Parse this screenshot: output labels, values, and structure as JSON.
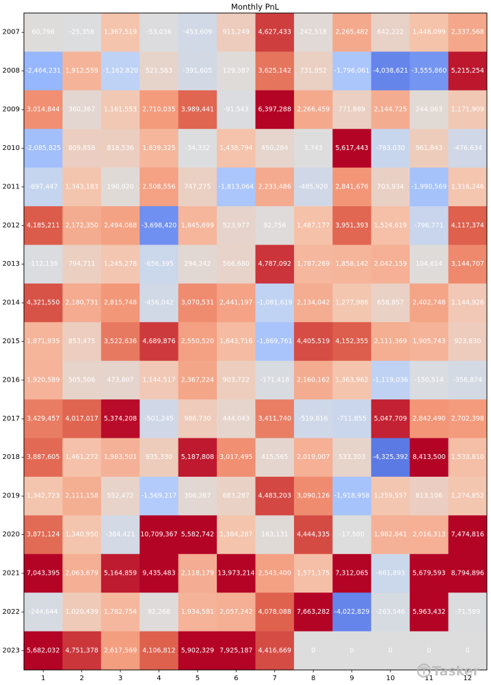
{
  "chart_data": {
    "type": "heatmap",
    "title": "Monthly PnL",
    "xlabel": "",
    "ylabel": "",
    "x": [
      "1",
      "2",
      "3",
      "4",
      "5",
      "6",
      "7",
      "8",
      "9",
      "10",
      "11",
      "12"
    ],
    "y": [
      "2007",
      "2008",
      "2009",
      "2010",
      "2011",
      "2012",
      "2013",
      "2014",
      "2015",
      "2016",
      "2017",
      "2018",
      "2019",
      "2020",
      "2021",
      "2022",
      "2023"
    ],
    "values": [
      [
        60796,
        -25358,
        1367519,
        -53036,
        -453609,
        911249,
        4627433,
        242518,
        2265482,
        642222,
        1448099,
        2337568
      ],
      [
        -2464231,
        1912559,
        -1162820,
        521563,
        -391605,
        129387,
        3625142,
        731952,
        -1796061,
        -4038621,
        -3555860,
        5215254
      ],
      [
        3014844,
        360367,
        1161553,
        2710035,
        3989441,
        -91543,
        6397288,
        2266459,
        771889,
        2144725,
        244063,
        1171909
      ],
      [
        -2085825,
        809858,
        818536,
        1839325,
        -34332,
        1438794,
        450284,
        3743,
        5617443,
        -783030,
        961843,
        -476634
      ],
      [
        -897447,
        1343183,
        190020,
        2508556,
        747275,
        -1813064,
        2233486,
        -485920,
        2841676,
        703934,
        -1990569,
        1316246
      ],
      [
        4185211,
        2172350,
        2494088,
        -3698420,
        1845699,
        523977,
        92756,
        1487177,
        3951393,
        1524619,
        -796771,
        4117374
      ],
      [
        -112136,
        794711,
        1245278,
        -656395,
        294242,
        566680,
        4787092,
        1787269,
        1858142,
        2042159,
        104614,
        3144707
      ],
      [
        4321550,
        2180731,
        2815748,
        -456042,
        3070531,
        2441197,
        -1081619,
        2134042,
        1277986,
        658857,
        2402748,
        1144926
      ],
      [
        1871935,
        853475,
        3522636,
        4689876,
        2550520,
        1643716,
        -1869761,
        4405519,
        4152355,
        2111369,
        1905743,
        923830
      ],
      [
        1920589,
        505506,
        473807,
        1144517,
        2367224,
        903722,
        -171418,
        2160162,
        1363962,
        -1119036,
        -150514,
        -356874
      ],
      [
        3429457,
        4017017,
        5374208,
        -501245,
        986730,
        444043,
        3411740,
        -519816,
        -711855,
        5047709,
        2842490,
        2702398
      ],
      [
        3887605,
        1461272,
        1983501,
        935330,
        5187808,
        3017495,
        415565,
        2019007,
        533303,
        -4325392,
        8413500,
        1533810
      ],
      [
        1342723,
        2111158,
        552472,
        -1569217,
        306267,
        683287,
        4483203,
        3090126,
        -1918958,
        1259557,
        813106,
        1274852
      ],
      [
        3871124,
        1340950,
        -384421,
        10709367,
        5582742,
        1384287,
        163131,
        4444335,
        -17500,
        1982841,
        2016313,
        7474816
      ],
      [
        7043395,
        2063679,
        5164859,
        9435483,
        2118179,
        13973214,
        2543400,
        1571175,
        7312065,
        -661893,
        5679593,
        8794896
      ],
      [
        -244644,
        1020439,
        1782754,
        92268,
        1934581,
        2057242,
        4078088,
        7663282,
        -4022829,
        -263546,
        5963432,
        -71589
      ],
      [
        5682032,
        4751378,
        2617569,
        4106812,
        5902329,
        7925187,
        4416669,
        0,
        0,
        0,
        0,
        0
      ]
    ],
    "colormap": "coolwarm",
    "color_range": [
      -5500000,
      5500000
    ],
    "grid": false,
    "legend": "none"
  },
  "watermark": {
    "text": "Tasker",
    "icon": "tasker-logo-icon"
  }
}
